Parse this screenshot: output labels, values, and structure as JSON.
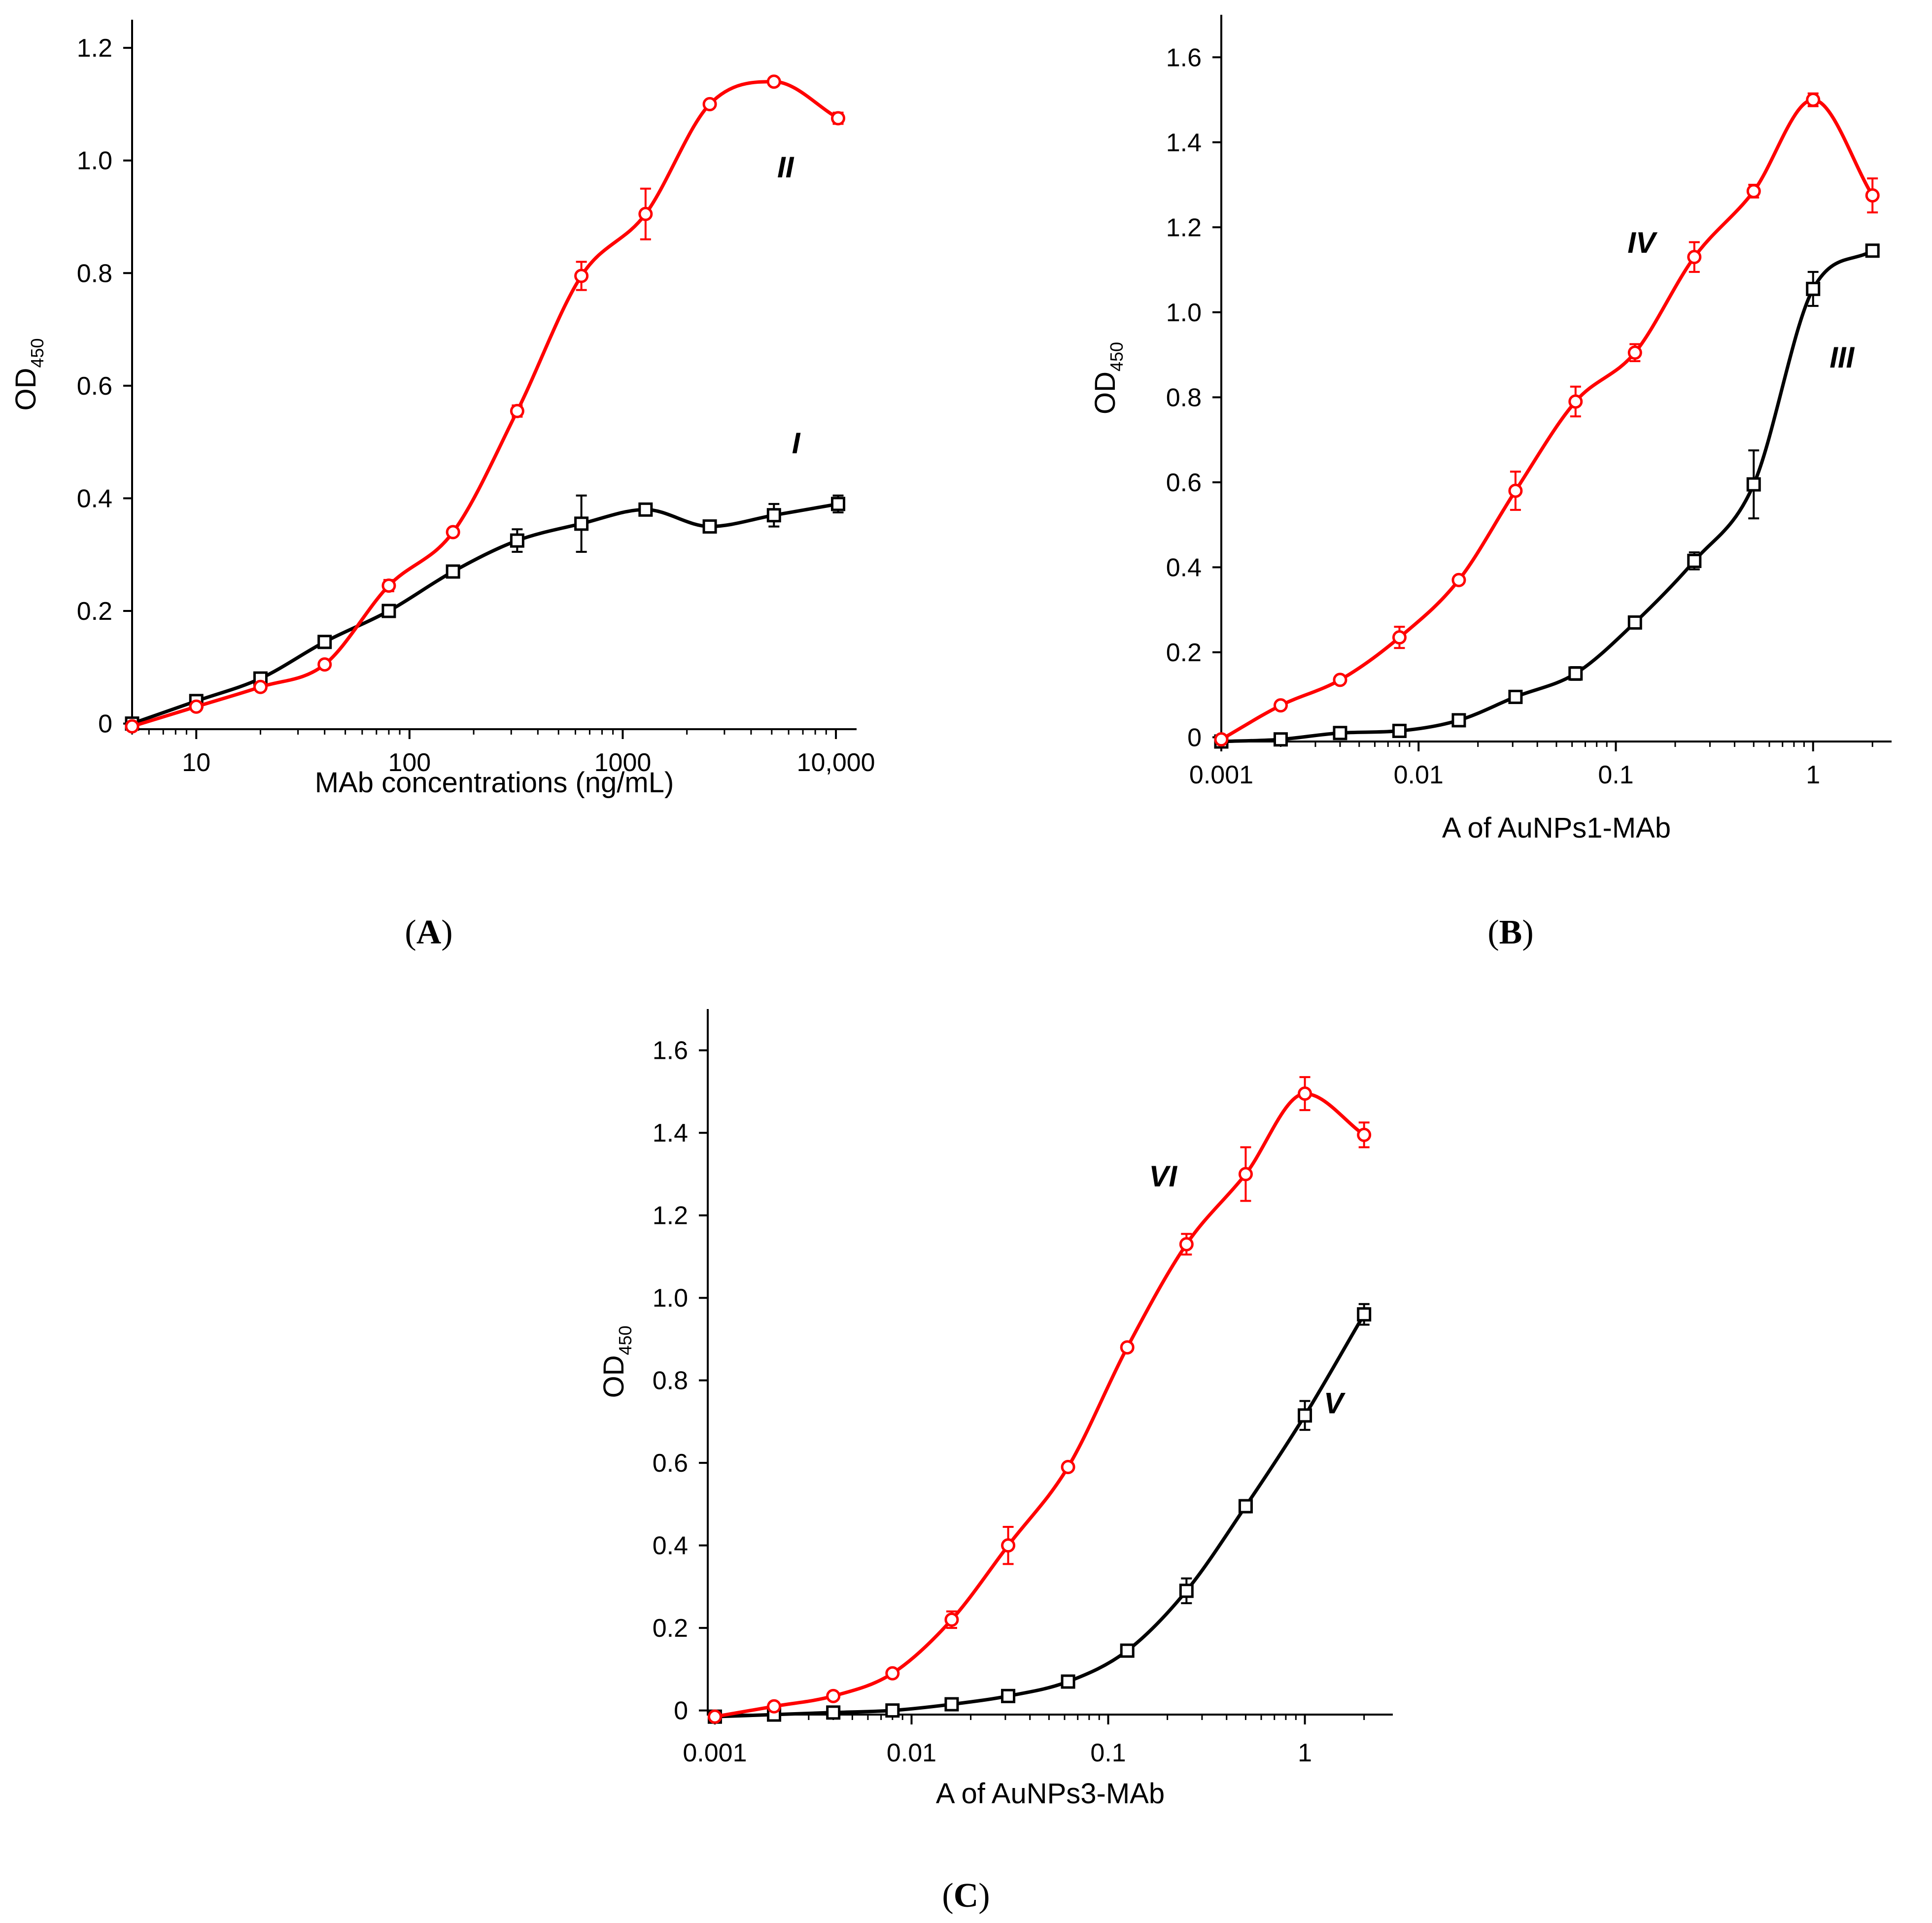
{
  "chart_data": [
    {
      "type": "line",
      "panel": "A",
      "caption": "(A)",
      "caption_letter": "A",
      "xscale": "log",
      "xlim": [
        5,
        12500
      ],
      "ylim": [
        -0.01,
        1.25
      ],
      "xticks": [
        10,
        100,
        1000,
        10000
      ],
      "xtick_labels": [
        "10",
        "100",
        "1000",
        "10,000"
      ],
      "yticks": [
        0,
        0.2,
        0.4,
        0.6,
        0.8,
        1.0,
        1.2
      ],
      "ytick_labels": [
        "0",
        "0.2",
        "0.4",
        "0.6",
        "0.8",
        "1.0",
        "1.2"
      ],
      "xlabel": "MAb concentrations (ng/mL)",
      "ylabel": "OD",
      "ylabel_sub": "450",
      "series": [
        {
          "name": "I",
          "color": "#000000",
          "marker": "square",
          "x": [
            5,
            10,
            20,
            40,
            80,
            160,
            320,
            640,
            1280,
            2560,
            5120,
            10240
          ],
          "y": [
            0.0,
            0.04,
            0.08,
            0.145,
            0.2,
            0.27,
            0.325,
            0.355,
            0.38,
            0.35,
            0.37,
            0.39
          ],
          "err": [
            0.005,
            0.005,
            0.005,
            0.01,
            0.01,
            0.005,
            0.02,
            0.05,
            0.005,
            0.005,
            0.02,
            0.015
          ],
          "label_pos": [
            6500,
            0.48
          ]
        },
        {
          "name": "II",
          "color": "#ff0000",
          "marker": "circle",
          "x": [
            5,
            10,
            20,
            40,
            80,
            160,
            320,
            640,
            1280,
            2560,
            5120,
            10240
          ],
          "y": [
            -0.005,
            0.03,
            0.065,
            0.105,
            0.245,
            0.34,
            0.555,
            0.795,
            0.905,
            1.1,
            1.14,
            1.075
          ],
          "err": [
            0.005,
            0.005,
            0.005,
            0.005,
            0.01,
            0.005,
            0.01,
            0.025,
            0.045,
            0.005,
            0.005,
            0.01
          ],
          "label_pos": [
            5800,
            0.97
          ]
        }
      ]
    },
    {
      "type": "line",
      "panel": "B",
      "caption": "(B)",
      "caption_letter": "B",
      "xscale": "log",
      "xlim": [
        0.001,
        2.5
      ],
      "ylim": [
        -0.01,
        1.7
      ],
      "xticks": [
        0.001,
        0.01,
        0.1,
        1
      ],
      "xtick_labels": [
        "0.001",
        "0.01",
        "0.1",
        "1"
      ],
      "yticks": [
        0,
        0.2,
        0.4,
        0.6,
        0.8,
        1.0,
        1.2,
        1.4,
        1.6
      ],
      "ytick_labels": [
        "0",
        "0.2",
        "0.4",
        "0.6",
        "0.8",
        "1.0",
        "1.2",
        "1.4",
        "1.6"
      ],
      "xlabel": "A of AuNPs1-MAb",
      "ylabel": "OD",
      "ylabel_sub": "450",
      "series": [
        {
          "name": "III",
          "color": "#000000",
          "marker": "square",
          "x": [
            0.001,
            0.002,
            0.004,
            0.008,
            0.016,
            0.031,
            0.0625,
            0.125,
            0.25,
            0.5,
            1,
            2
          ],
          "y": [
            -0.01,
            -0.005,
            0.01,
            0.015,
            0.04,
            0.095,
            0.15,
            0.27,
            0.415,
            0.595,
            1.055,
            1.145
          ],
          "err": [
            0.005,
            0.005,
            0.005,
            0.005,
            0.005,
            0.005,
            0.015,
            0.01,
            0.02,
            0.08,
            0.04,
            0.005
          ],
          "label_pos": [
            1.4,
            0.87
          ]
        },
        {
          "name": "IV",
          "color": "#ff0000",
          "marker": "circle",
          "x": [
            0.001,
            0.002,
            0.004,
            0.008,
            0.016,
            0.031,
            0.0625,
            0.125,
            0.25,
            0.5,
            1,
            2
          ],
          "y": [
            -0.005,
            0.075,
            0.135,
            0.235,
            0.37,
            0.58,
            0.79,
            0.905,
            1.13,
            1.285,
            1.5,
            1.275
          ],
          "err": [
            0.005,
            0.005,
            0.005,
            0.025,
            0.01,
            0.045,
            0.035,
            0.02,
            0.035,
            0.015,
            0.015,
            0.04
          ],
          "label_pos": [
            0.135,
            1.14
          ]
        }
      ]
    },
    {
      "type": "line",
      "panel": "C",
      "caption": "(C)",
      "caption_letter": "C",
      "xscale": "log",
      "xlim": [
        0.00092,
        2.8
      ],
      "ylim": [
        -0.01,
        1.7
      ],
      "xticks": [
        0.001,
        0.01,
        0.1,
        1
      ],
      "xtick_labels": [
        "0.001",
        "0.01",
        "0.1",
        "1"
      ],
      "yticks": [
        0,
        0.2,
        0.4,
        0.6,
        0.8,
        1.0,
        1.2,
        1.4,
        1.6
      ],
      "ytick_labels": [
        "0",
        "0.2",
        "0.4",
        "0.6",
        "0.8",
        "1.0",
        "1.2",
        "1.4",
        "1.6"
      ],
      "xlabel": "A of AuNPs3-MAb",
      "ylabel": "OD",
      "ylabel_sub": "450",
      "series": [
        {
          "name": "V",
          "color": "#000000",
          "marker": "square",
          "x": [
            0.001,
            0.002,
            0.004,
            0.008,
            0.016,
            0.031,
            0.0625,
            0.125,
            0.25,
            0.5,
            1,
            2
          ],
          "y": [
            -0.015,
            -0.01,
            -0.005,
            0.0,
            0.015,
            0.035,
            0.07,
            0.145,
            0.29,
            0.495,
            0.715,
            0.96
          ],
          "err": [
            0.005,
            0.005,
            0.005,
            0.005,
            0.005,
            0.005,
            0.005,
            0.005,
            0.03,
            0.015,
            0.035,
            0.025
          ],
          "label_pos": [
            1.4,
            0.72
          ]
        },
        {
          "name": "VI",
          "color": "#ff0000",
          "marker": "circle",
          "x": [
            0.001,
            0.002,
            0.004,
            0.008,
            0.016,
            0.031,
            0.0625,
            0.125,
            0.25,
            0.5,
            1,
            2
          ],
          "y": [
            -0.015,
            0.01,
            0.035,
            0.09,
            0.22,
            0.4,
            0.59,
            0.88,
            1.13,
            1.3,
            1.495,
            1.395
          ],
          "err": [
            0.005,
            0.005,
            0.005,
            0.005,
            0.02,
            0.045,
            0.005,
            0.01,
            0.025,
            0.065,
            0.04,
            0.03
          ],
          "label_pos": [
            0.19,
            1.27
          ]
        }
      ]
    }
  ]
}
